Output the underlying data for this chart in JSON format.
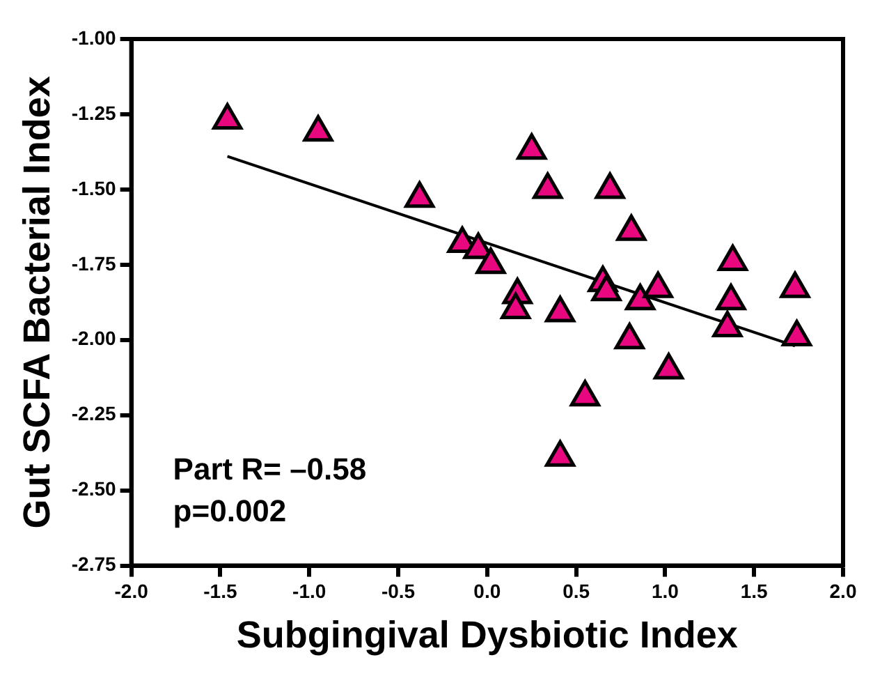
{
  "chart_data": {
    "type": "scatter",
    "xlabel": "Subgingival Dysbiotic Index",
    "ylabel": "Gut SCFA Bacterial Index",
    "marker": "triangle",
    "annotations": [
      "Part R= –0.58",
      "p=0.002"
    ],
    "xlim": [
      -2,
      2
    ],
    "ylim": [
      -2.75,
      -1
    ],
    "xticks": [
      {
        "value": -2,
        "label": "-2.0"
      },
      {
        "value": -1.5,
        "label": "-1.5"
      },
      {
        "value": -1,
        "label": "-1.0"
      },
      {
        "value": -0.5,
        "label": "-0.5"
      },
      {
        "value": 0,
        "label": "0.0"
      },
      {
        "value": 0.5,
        "label": "0.5"
      },
      {
        "value": 1,
        "label": "1.0"
      },
      {
        "value": 1.5,
        "label": "1.5"
      },
      {
        "value": 2,
        "label": "2.0"
      }
    ],
    "yticks": [
      {
        "value": -1,
        "label": "-1.00"
      },
      {
        "value": -1.25,
        "label": "-1.25"
      },
      {
        "value": -1.5,
        "label": "-1.50"
      },
      {
        "value": -1.75,
        "label": "-1.75"
      },
      {
        "value": -2,
        "label": "-2.00"
      },
      {
        "value": -2.25,
        "label": "-2.25"
      },
      {
        "value": -2.5,
        "label": "-2.50"
      },
      {
        "value": -2.75,
        "label": "-2.75"
      }
    ],
    "series": [
      {
        "color": "#e8077f",
        "x": [
          -1.46,
          -0.95,
          -0.38,
          -0.14,
          -0.05,
          0.02,
          0.17,
          0.16,
          0.25,
          0.34,
          0.41,
          0.41,
          0.55,
          0.69,
          0.81,
          0.65,
          0.67,
          0.86,
          0.96,
          0.8,
          1.02,
          1.38,
          1.37,
          1.35,
          1.73,
          1.74
        ],
        "values": [
          -1.27,
          -1.31,
          -1.53,
          -1.68,
          -1.7,
          -1.75,
          -1.85,
          -1.9,
          -1.37,
          -1.5,
          -1.91,
          -2.39,
          -2.19,
          -1.5,
          -1.64,
          -1.81,
          -1.84,
          -1.87,
          -1.83,
          -2.0,
          -2.1,
          -1.74,
          -1.87,
          -1.96,
          -1.83,
          -1.99
        ]
      },
      {
        "type": "line",
        "color": "#000000",
        "marker": "none",
        "x": [
          -1.46,
          1.73
        ],
        "values": [
          -1.39,
          -2.02
        ]
      }
    ]
  }
}
